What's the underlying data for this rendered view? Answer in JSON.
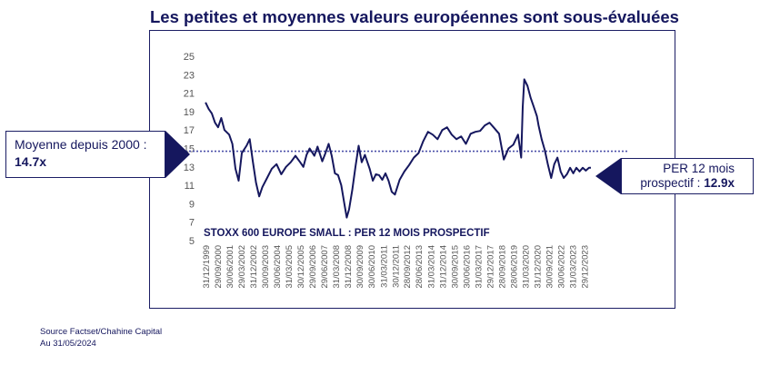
{
  "title": "Les petites et moyennes valeurs européennes sont sous-évaluées",
  "callouts": {
    "average_prefix": "Moyenne depuis 2000 :",
    "average_value": "14.7x",
    "current_prefix": "PER 12 mois prospectif :",
    "current_value": "12.9x"
  },
  "source": {
    "line1": "Source Factset/Chahine Capital",
    "line2": "Au 31/05/2024"
  },
  "chart_data": {
    "type": "line",
    "title": "STOXX 600 EUROPE SMALL : PER 12 MOIS PROSPECTIF",
    "xlabel": "",
    "ylabel": "",
    "ylim": [
      5,
      25
    ],
    "yticks": [
      5,
      7,
      9,
      11,
      13,
      15,
      17,
      19,
      21,
      23,
      25
    ],
    "xlim": [
      1999.997,
      2024.42
    ],
    "grid": false,
    "xtick_labels": [
      "31/12/1999",
      "29/09/2000",
      "30/06/2001",
      "29/03/2002",
      "31/12/2002",
      "30/09/2003",
      "30/06/2004",
      "31/03/2005",
      "30/12/2005",
      "29/09/2006",
      "29/06/2007",
      "31/03/2008",
      "31/12/2008",
      "30/09/2009",
      "30/06/2010",
      "31/03/2011",
      "30/12/2011",
      "28/09/2012",
      "28/06/2013",
      "31/03/2014",
      "31/12/2014",
      "30/09/2015",
      "30/06/2016",
      "31/03/2017",
      "29/12/2017",
      "28/09/2018",
      "28/06/2019",
      "31/03/2020",
      "31/12/2020",
      "30/09/2021",
      "30/06/2022",
      "31/03/2023",
      "29/12/2023"
    ],
    "xtick_years": [
      1999.997,
      2000.745,
      2001.493,
      2002.241,
      2002.997,
      2003.745,
      2004.493,
      2005.245,
      2005.997,
      2006.745,
      2007.493,
      2008.245,
      2008.997,
      2009.745,
      2010.493,
      2011.245,
      2011.997,
      2012.741,
      2013.49,
      2014.245,
      2014.997,
      2015.745,
      2016.493,
      2017.245,
      2017.99,
      2018.738,
      2019.487,
      2020.245,
      2020.997,
      2021.745,
      2022.493,
      2023.245,
      2023.99
    ],
    "reference_line": {
      "name": "Moyenne depuis 2000",
      "value": 14.7
    },
    "series": [
      {
        "name": "",
        "color": "#15175e",
        "x": [
          2000.0,
          2000.2,
          2000.4,
          2000.6,
          2000.8,
          2001.0,
          2001.2,
          2001.5,
          2001.7,
          2001.9,
          2002.1,
          2002.3,
          2002.6,
          2002.8,
          2003.0,
          2003.2,
          2003.4,
          2003.6,
          2003.9,
          2004.2,
          2004.5,
          2004.8,
          2005.1,
          2005.4,
          2005.7,
          2006.0,
          2006.2,
          2006.4,
          2006.6,
          2006.9,
          2007.1,
          2007.4,
          2007.6,
          2007.8,
          2008.0,
          2008.2,
          2008.4,
          2008.6,
          2008.8,
          2008.95,
          2009.1,
          2009.3,
          2009.5,
          2009.7,
          2009.9,
          2010.1,
          2010.4,
          2010.6,
          2010.8,
          2011.0,
          2011.2,
          2011.4,
          2011.6,
          2011.8,
          2012.0,
          2012.3,
          2012.6,
          2012.9,
          2013.2,
          2013.5,
          2013.8,
          2014.1,
          2014.4,
          2014.7,
          2015.0,
          2015.3,
          2015.6,
          2015.9,
          2016.2,
          2016.5,
          2016.8,
          2017.1,
          2017.4,
          2017.7,
          2018.0,
          2018.3,
          2018.6,
          2018.9,
          2019.2,
          2019.5,
          2019.8,
          2020.0,
          2020.1,
          2020.2,
          2020.4,
          2020.6,
          2020.8,
          2021.0,
          2021.1,
          2021.3,
          2021.5,
          2021.7,
          2021.9,
          2022.1,
          2022.3,
          2022.5,
          2022.7,
          2022.9,
          2023.1,
          2023.3,
          2023.5,
          2023.7,
          2023.9,
          2024.1,
          2024.3,
          2024.42
        ],
        "values": [
          20.0,
          19.3,
          18.8,
          17.8,
          17.3,
          18.3,
          17.0,
          16.5,
          15.5,
          12.8,
          11.5,
          14.5,
          15.3,
          16.0,
          13.6,
          11.3,
          9.8,
          10.8,
          11.8,
          12.8,
          13.3,
          12.2,
          13.0,
          13.5,
          14.2,
          13.5,
          13.0,
          14.3,
          15.0,
          14.2,
          15.2,
          13.6,
          14.5,
          15.5,
          14.2,
          12.3,
          12.1,
          11.0,
          9.0,
          7.5,
          8.4,
          10.5,
          13.0,
          15.3,
          13.5,
          14.3,
          12.8,
          11.5,
          12.2,
          12.1,
          11.6,
          12.3,
          11.5,
          10.3,
          10.0,
          11.6,
          12.5,
          13.2,
          14.0,
          14.5,
          15.8,
          16.8,
          16.5,
          16.0,
          17.0,
          17.3,
          16.5,
          16.0,
          16.3,
          15.5,
          16.6,
          16.8,
          16.9,
          17.5,
          17.8,
          17.2,
          16.6,
          13.8,
          15.0,
          15.4,
          16.5,
          14.0,
          19.5,
          22.5,
          21.8,
          20.5,
          19.5,
          18.5,
          17.5,
          16.0,
          14.8,
          13.2,
          11.8,
          13.3,
          14.0,
          12.5,
          11.8,
          12.2,
          12.9,
          12.3,
          12.9,
          12.5,
          12.9,
          12.6,
          12.9,
          12.9
        ]
      }
    ]
  }
}
